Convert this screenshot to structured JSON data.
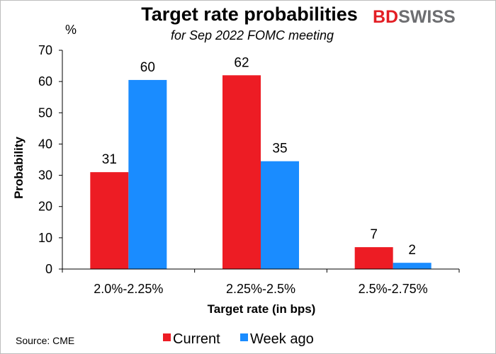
{
  "chart_data": {
    "type": "bar",
    "title": "Target rate probabilities",
    "subtitle": "for Sep 2022 FOMC meeting",
    "unit_label": "%",
    "xlabel": "Target rate (in bps)",
    "ylabel": "Probability",
    "categories": [
      "2.0%-2.25%",
      "2.25%-2.5%",
      "2.5%-2.75%"
    ],
    "series": [
      {
        "name": "Current",
        "color": "#ed1c24",
        "values": [
          31,
          62,
          7
        ],
        "labels": [
          "31",
          "62",
          "7"
        ]
      },
      {
        "name": "Week ago",
        "color": "#1a8cff",
        "values": [
          60.5,
          34.5,
          2
        ],
        "labels": [
          "60",
          "35",
          "2"
        ]
      }
    ],
    "ylim": [
      0,
      70
    ],
    "yticks": [
      "0",
      "10",
      "20",
      "30",
      "40",
      "50",
      "60",
      "70"
    ],
    "ytick_values": [
      0,
      10,
      20,
      30,
      40,
      50,
      60,
      70
    ],
    "grid": false,
    "legend_position": "bottom"
  },
  "source": "Source: CME",
  "logo": {
    "text_part1": "BD",
    "text_part2": "SWISS",
    "color_part1": "#e31e24",
    "color_part2": "#6d6e71"
  }
}
